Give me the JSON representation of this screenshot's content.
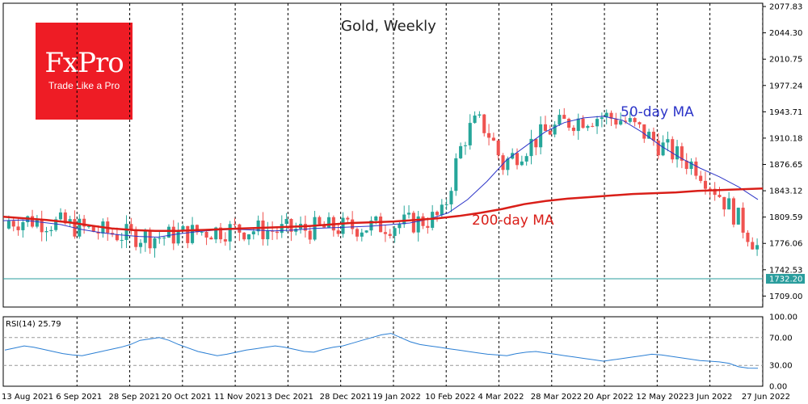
{
  "brand": {
    "name": "FxPro",
    "tagline": "Trade Like a Pro",
    "color": "#ee1c25"
  },
  "chart_data": [
    {
      "type": "candlestick",
      "title": "Gold, Weekly",
      "y_ticks": [
        "2077.83",
        "2044.30",
        "2010.75",
        "1977.24",
        "1943.71",
        "1910.18",
        "1876.65",
        "1843.12",
        "1809.59",
        "1776.06",
        "1742.53",
        "1709.00"
      ],
      "y_range": [
        1695,
        2082
      ],
      "x_ticks": [
        "13 Aug 2021",
        "6 Sep 2021",
        "28 Sep 2021",
        "20 Oct 2021",
        "11 Nov 2021",
        "3 Dec 2021",
        "28 Dec 2021",
        "19 Jan 2022",
        "10 Feb 2022",
        "4 Mar 2022",
        "28 Mar 2022",
        "20 Apr 2022",
        "12 May 2022",
        "3 Jun 2022",
        "27 Jun 2022"
      ],
      "current_price": "1732.20",
      "price_line": 1731,
      "colors": {
        "up": "#26a69a",
        "down": "#ef5350",
        "ma50": "#2d35c8",
        "ma200": "#d91e18",
        "price_line": "#2a9d9d"
      },
      "series": [
        {
          "name": "50-day MA",
          "color": "#2d35c8",
          "values": [
            1805,
            1806,
            1803,
            1800,
            1794,
            1790,
            1787,
            1785,
            1784,
            1788,
            1791,
            1793,
            1794,
            1793,
            1792,
            1793,
            1795,
            1796,
            1797,
            1798,
            1800,
            1802,
            1807,
            1815,
            1832,
            1855,
            1882,
            1900,
            1918,
            1930,
            1936,
            1938,
            1933,
            1918,
            1900,
            1885,
            1872,
            1861,
            1848,
            1832
          ]
        },
        {
          "name": "200-day MA",
          "color": "#d91e18",
          "values": [
            1810,
            1808,
            1806,
            1803,
            1799,
            1795,
            1793,
            1792,
            1792,
            1793,
            1794,
            1795,
            1796,
            1797,
            1798,
            1800,
            1802,
            1803,
            1804,
            1806,
            1808,
            1811,
            1815,
            1820,
            1826,
            1830,
            1833,
            1835,
            1837,
            1839,
            1840,
            1841,
            1843,
            1844,
            1845,
            1846
          ]
        }
      ],
      "annotations": [
        "50-day MA",
        "200-day MA"
      ]
    },
    {
      "type": "line",
      "title": "RSI(14) 25.79",
      "y_ticks": [
        "100.00",
        "70.00",
        "30.00",
        "0.00"
      ],
      "y_range": [
        0,
        100
      ],
      "levels": [
        70,
        30
      ],
      "color": "#2b7fd4",
      "values": [
        52,
        55,
        58,
        56,
        53,
        50,
        47,
        45,
        44,
        47,
        50,
        53,
        56,
        60,
        66,
        68,
        70,
        66,
        60,
        55,
        50,
        47,
        44,
        46,
        49,
        52,
        54,
        56,
        58,
        56,
        53,
        50,
        49,
        53,
        56,
        58,
        62,
        66,
        70,
        74,
        76,
        70,
        64,
        60,
        58,
        56,
        54,
        52,
        50,
        48,
        46,
        45,
        44,
        47,
        49,
        50,
        48,
        46,
        44,
        42,
        40,
        38,
        36,
        38,
        40,
        42,
        44,
        46,
        45,
        43,
        41,
        39,
        37,
        36,
        35,
        33,
        28,
        26,
        25.79
      ]
    }
  ]
}
